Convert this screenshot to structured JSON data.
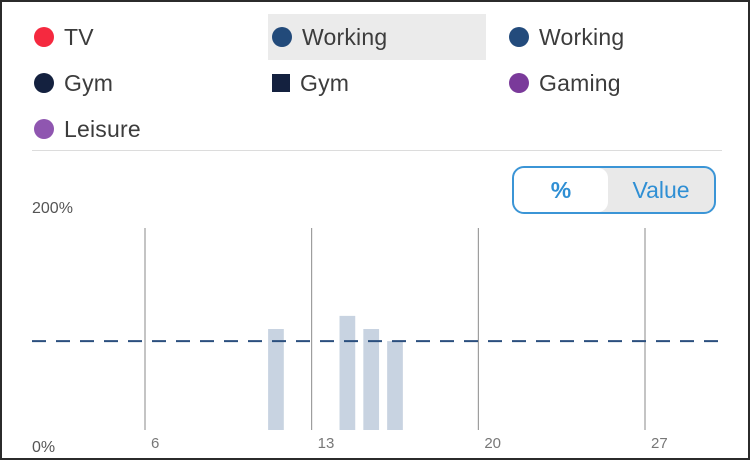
{
  "legend": {
    "items": [
      {
        "label": "TV",
        "color": "#f5293f",
        "shape": "circle",
        "selected": false
      },
      {
        "label": "Working",
        "color": "#224a7a",
        "shape": "circle",
        "selected": true
      },
      {
        "label": "Working",
        "color": "#234b7c",
        "shape": "circle",
        "selected": false
      },
      {
        "label": "Gym",
        "color": "#14213f",
        "shape": "circle",
        "selected": false
      },
      {
        "label": "Gym",
        "color": "#14213f",
        "shape": "square",
        "selected": false
      },
      {
        "label": "Gaming",
        "color": "#7a3a9a",
        "shape": "circle",
        "selected": false
      },
      {
        "label": "Leisure",
        "color": "#8f56b0",
        "shape": "circle",
        "selected": false
      }
    ]
  },
  "toggle": {
    "options": [
      "%",
      "Value"
    ],
    "selected": "%",
    "accent_color": "#3b95d6"
  },
  "chart_data": {
    "type": "bar",
    "y_tick_labels": [
      "200%",
      "0%"
    ],
    "ylim": [
      0,
      200
    ],
    "x_tick_labels": [
      "6",
      "13",
      "20",
      "27"
    ],
    "x_ticks": [
      6,
      13,
      20,
      27
    ],
    "xlim": [
      1,
      31
    ],
    "bar_color": "#c8d3e1",
    "bars": [
      {
        "x": 11,
        "value": 100
      },
      {
        "x": 14,
        "value": 113
      },
      {
        "x": 15,
        "value": 100
      },
      {
        "x": 16,
        "value": 88
      }
    ],
    "reference_line": {
      "value": 88,
      "style": "dashed",
      "color": "#2b4f7e"
    },
    "grid": "vertical"
  }
}
